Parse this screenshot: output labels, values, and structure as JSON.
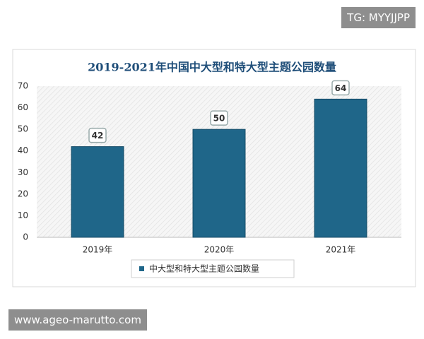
{
  "watermarks": {
    "top_right": "TG: MYYJJPP",
    "bottom_left": "www.ageo-marutto.com"
  },
  "chart_data": {
    "type": "bar",
    "title": "2019-2021年中国中大型和特大型主题公园数量",
    "categories": [
      "2019年",
      "2020年",
      "2021年"
    ],
    "series": [
      {
        "name": "中大型和特大型主题公园数量",
        "color": "#1f6689",
        "values": [
          42,
          50,
          64
        ]
      }
    ],
    "ylim": [
      0,
      70
    ],
    "yticks": [
      0,
      10,
      20,
      30,
      40,
      50,
      60,
      70
    ],
    "grid": false
  }
}
